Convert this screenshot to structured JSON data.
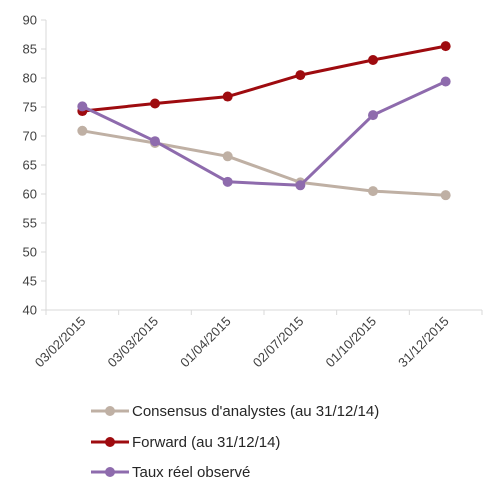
{
  "chart_data": {
    "type": "line",
    "categories": [
      "03/02/2015",
      "03/03/2015",
      "01/04/2015",
      "02/07/2015",
      "01/10/2015",
      "31/12/2015"
    ],
    "ylim": [
      40,
      90
    ],
    "yticks": [
      40,
      45,
      50,
      55,
      60,
      65,
      70,
      75,
      80,
      85,
      90
    ],
    "grid": false,
    "legend_position": "bottom",
    "series": [
      {
        "name": "Consensus d'analystes (au 31/12/14)",
        "color": "#BFB0A4",
        "values": [
          70.9,
          68.8,
          66.5,
          62.0,
          60.5,
          59.8
        ]
      },
      {
        "name": "Forward (au 31/12/14)",
        "color": "#9E0B0F",
        "values": [
          74.3,
          75.6,
          76.8,
          80.5,
          83.1,
          85.5
        ]
      },
      {
        "name": "Taux réel observé",
        "color": "#8E6BAD",
        "values": [
          75.1,
          69.1,
          62.1,
          61.5,
          73.6,
          79.4
        ]
      }
    ]
  }
}
